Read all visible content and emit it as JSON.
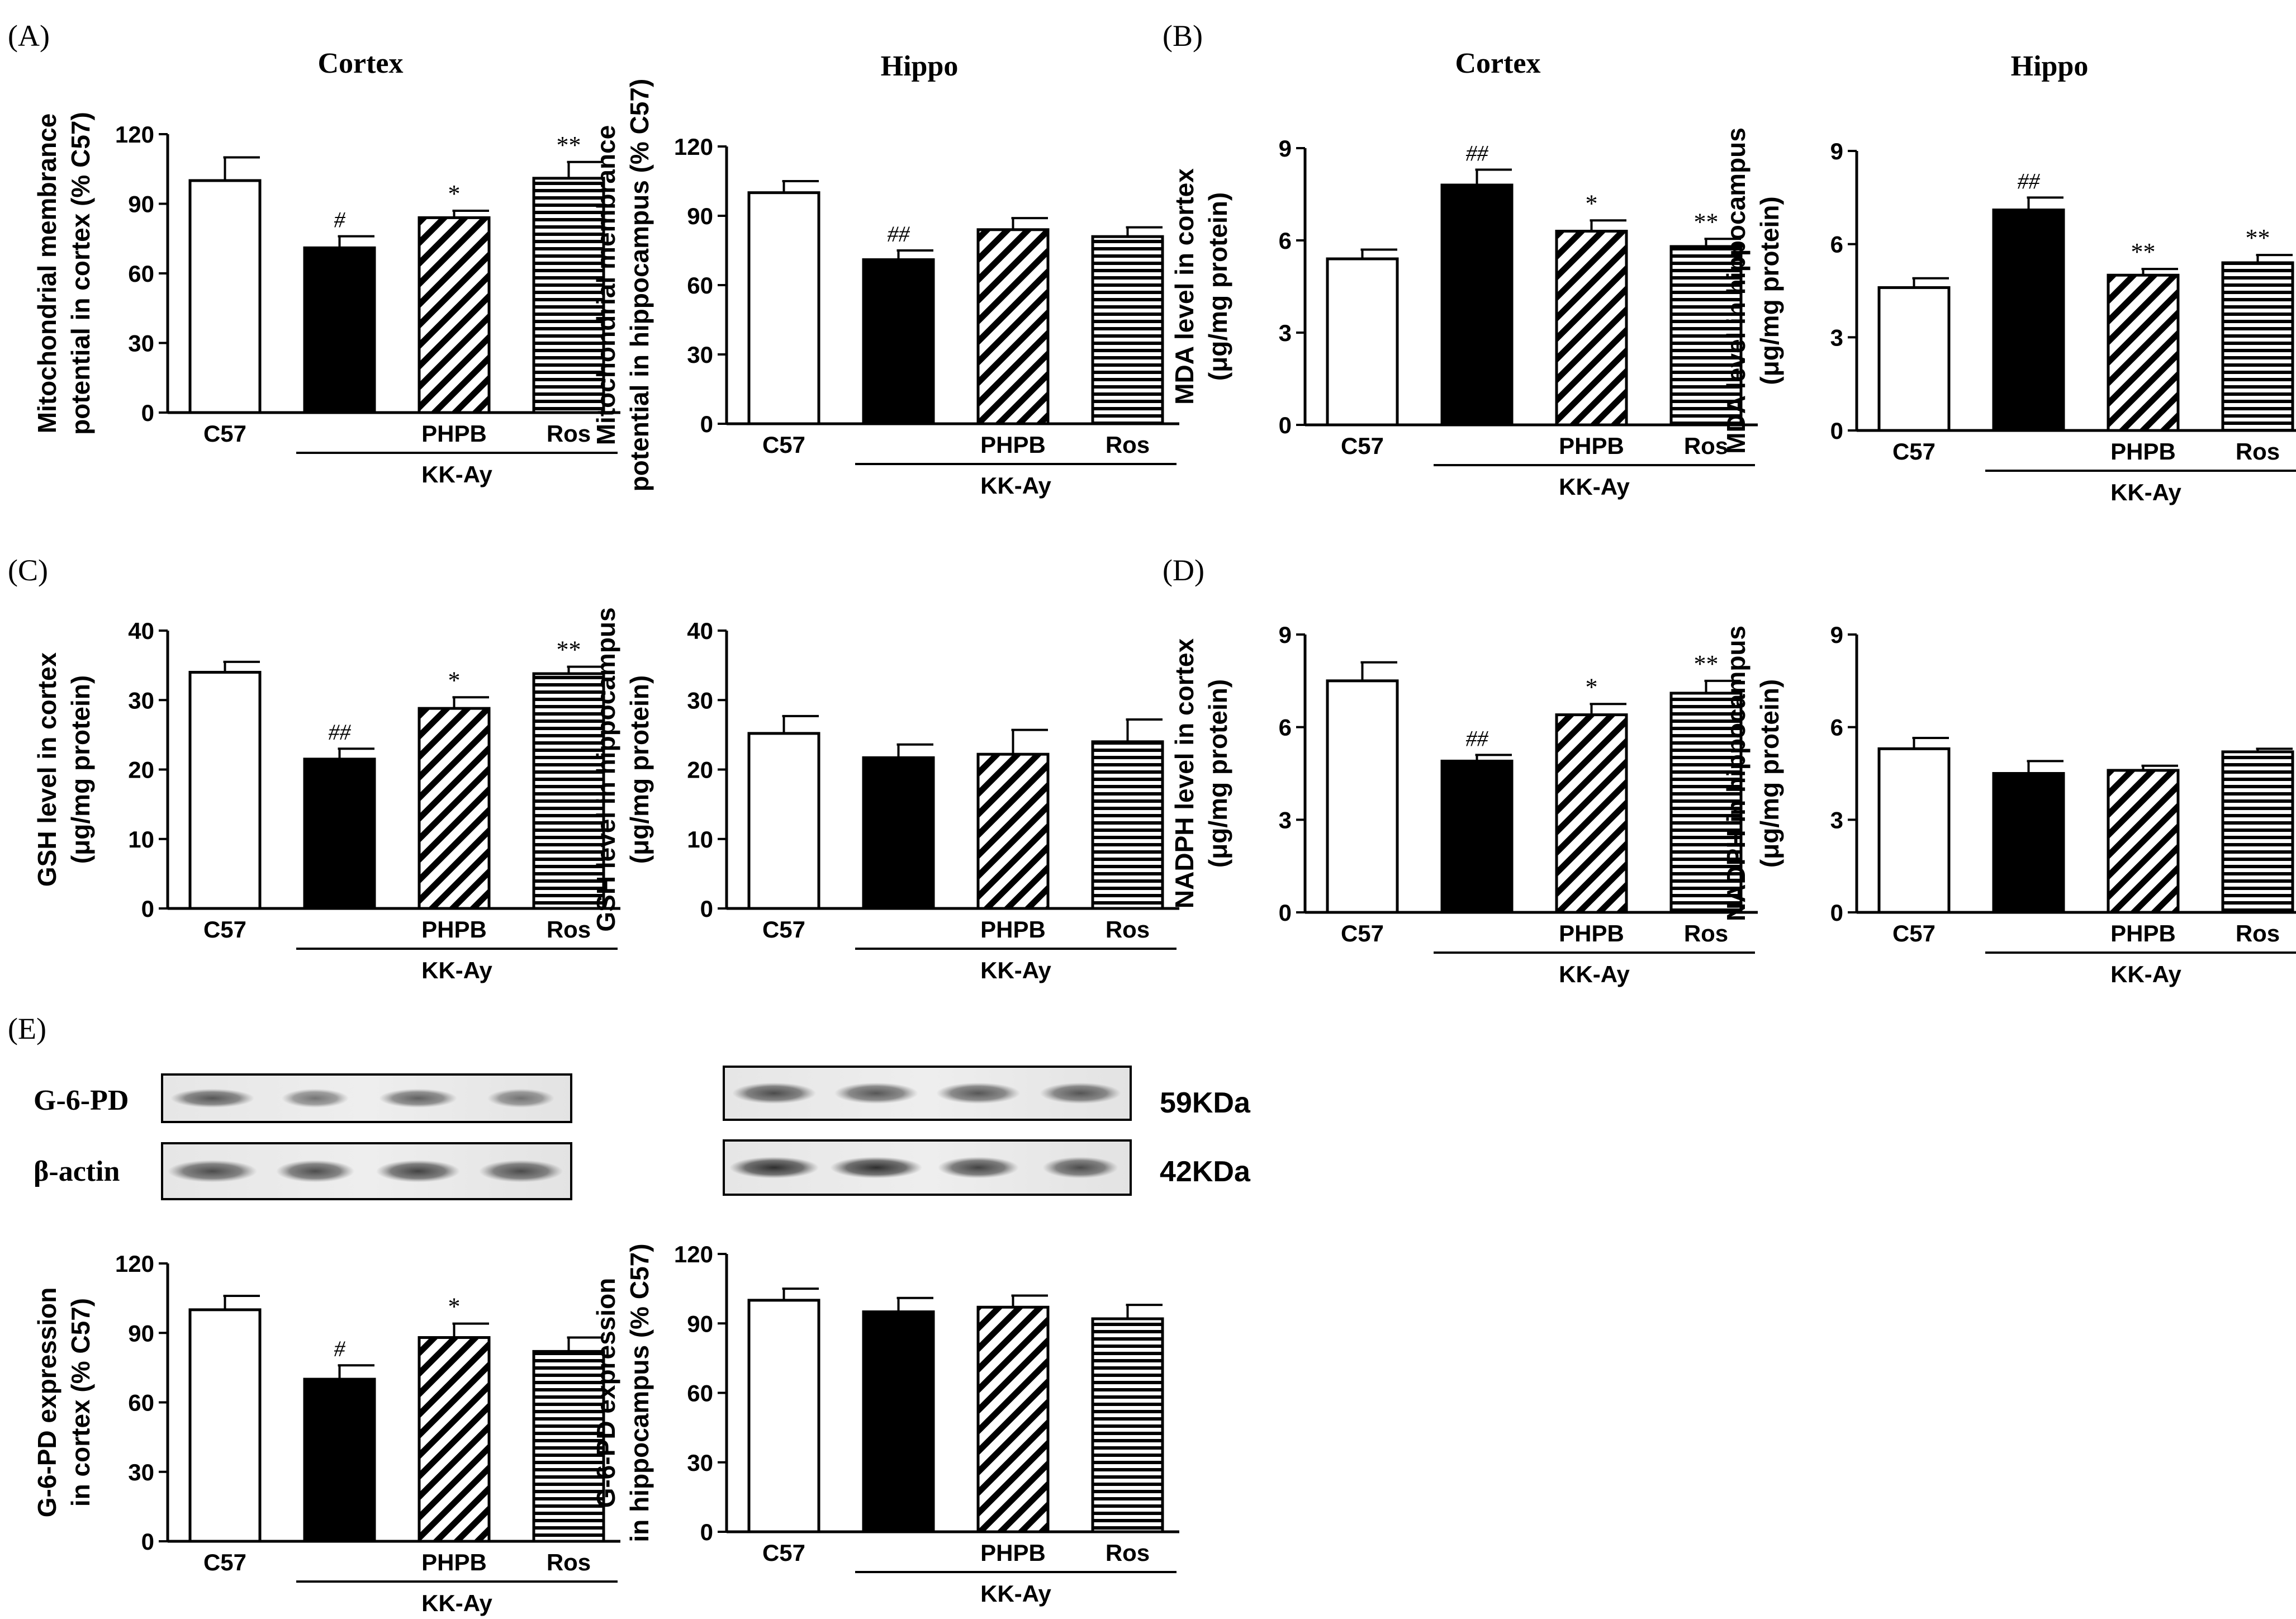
{
  "figure": {
    "panel_labels": [
      "(A)",
      "(B)",
      "(C)",
      "(D)",
      "(E)"
    ],
    "group_label": "KK-Ay",
    "categories": [
      "C57",
      "",
      "PHPB",
      "Ros"
    ],
    "colors": {
      "ink": "#000000",
      "paper": "#ffffff"
    }
  },
  "western_blot": {
    "row_labels": [
      "G-6-PD",
      "β-actin"
    ],
    "kda_labels": [
      "59KDa",
      "42KDa"
    ]
  },
  "chart_data": [
    {
      "id": "A1",
      "type": "bar",
      "title": "Cortex",
      "ylabel": [
        "Mitochondrial membrance",
        "potential in cortex (% C57)"
      ],
      "ylim": [
        0,
        120
      ],
      "ticks": [
        "0",
        "30",
        "60",
        "90",
        "120"
      ],
      "values": [
        100,
        71,
        84,
        101
      ],
      "errors": [
        10,
        5,
        3,
        7
      ],
      "annotations": [
        "",
        "#",
        "*",
        "**"
      ]
    },
    {
      "id": "A2",
      "type": "bar",
      "title": "Hippo",
      "ylabel": [
        "Mitochondrial membrance",
        "potential in hippocampus (% C57)"
      ],
      "ylim": [
        0,
        120
      ],
      "ticks": [
        "0",
        "30",
        "60",
        "90",
        "120"
      ],
      "values": [
        100,
        71,
        84,
        81
      ],
      "errors": [
        5,
        4,
        5,
        4
      ],
      "annotations": [
        "",
        "##",
        "",
        ""
      ]
    },
    {
      "id": "B1",
      "type": "bar",
      "title": "Cortex",
      "ylabel": [
        "MDA level in cortex",
        "(μg/mg protein)"
      ],
      "ylim": [
        0,
        9
      ],
      "ticks": [
        "0",
        "3",
        "6",
        "9"
      ],
      "values": [
        5.4,
        7.8,
        6.3,
        5.8
      ],
      "errors": [
        0.3,
        0.5,
        0.35,
        0.25
      ],
      "annotations": [
        "",
        "##",
        "*",
        "**"
      ]
    },
    {
      "id": "B2",
      "type": "bar",
      "title": "Hippo",
      "ylabel": [
        "MDA level in hippocampus",
        "(μg/mg protein)"
      ],
      "ylim": [
        0,
        9
      ],
      "ticks": [
        "0",
        "3",
        "6",
        "9"
      ],
      "values": [
        4.6,
        7.1,
        5.0,
        5.4
      ],
      "errors": [
        0.3,
        0.4,
        0.2,
        0.25
      ],
      "annotations": [
        "",
        "##",
        "**",
        "**"
      ]
    },
    {
      "id": "C1",
      "type": "bar",
      "title": "",
      "ylabel": [
        "GSH level in cortex",
        "(μg/mg protein)"
      ],
      "ylim": [
        0,
        40
      ],
      "ticks": [
        "0",
        "10",
        "20",
        "30",
        "40"
      ],
      "values": [
        34,
        21.5,
        28.8,
        33.8
      ],
      "errors": [
        1.5,
        1.5,
        1.6,
        1.0
      ],
      "annotations": [
        "",
        "##",
        "*",
        "**"
      ]
    },
    {
      "id": "C2",
      "type": "bar",
      "title": "",
      "ylabel": [
        "GSH level in hippocampus",
        "(μg/mg protein)"
      ],
      "ylim": [
        0,
        40
      ],
      "ticks": [
        "0",
        "10",
        "20",
        "30",
        "40"
      ],
      "values": [
        25.2,
        21.7,
        22.2,
        24.0
      ],
      "errors": [
        2.5,
        1.9,
        3.5,
        3.2
      ],
      "annotations": [
        "",
        "",
        "",
        ""
      ]
    },
    {
      "id": "D1",
      "type": "bar",
      "title": "",
      "ylabel": [
        "NADPH level in cortex",
        "(μg/mg protein)"
      ],
      "ylim": [
        0,
        9
      ],
      "ticks": [
        "0",
        "3",
        "6",
        "9"
      ],
      "values": [
        7.5,
        4.9,
        6.4,
        7.1
      ],
      "errors": [
        0.6,
        0.2,
        0.35,
        0.4
      ],
      "annotations": [
        "",
        "##",
        "*",
        "**"
      ]
    },
    {
      "id": "D2",
      "type": "bar",
      "title": "",
      "ylabel": [
        "NADPH in hippocampus",
        "(μg/mg protein)"
      ],
      "ylim": [
        0,
        9
      ],
      "ticks": [
        "0",
        "3",
        "6",
        "9"
      ],
      "values": [
        5.3,
        4.5,
        4.6,
        5.2
      ],
      "errors": [
        0.35,
        0.4,
        0.15,
        0.1
      ],
      "annotations": [
        "",
        "",
        "",
        ""
      ]
    },
    {
      "id": "E1",
      "type": "bar",
      "title": "",
      "ylabel": [
        "G-6-PD expression",
        "in cortex (% C57)"
      ],
      "ylim": [
        0,
        120
      ],
      "ticks": [
        "0",
        "30",
        "60",
        "90",
        "120"
      ],
      "values": [
        100,
        70,
        88,
        82
      ],
      "errors": [
        6,
        6,
        6,
        6
      ],
      "annotations": [
        "",
        "#",
        "*",
        ""
      ]
    },
    {
      "id": "E2",
      "type": "bar",
      "title": "",
      "ylabel": [
        "G-6-PD expression",
        "in hippocampus (% C57)"
      ],
      "ylim": [
        0,
        120
      ],
      "ticks": [
        "0",
        "30",
        "60",
        "90",
        "120"
      ],
      "values": [
        100,
        95,
        97,
        92
      ],
      "errors": [
        5,
        6,
        5,
        6
      ],
      "annotations": [
        "",
        "",
        "",
        ""
      ]
    }
  ]
}
